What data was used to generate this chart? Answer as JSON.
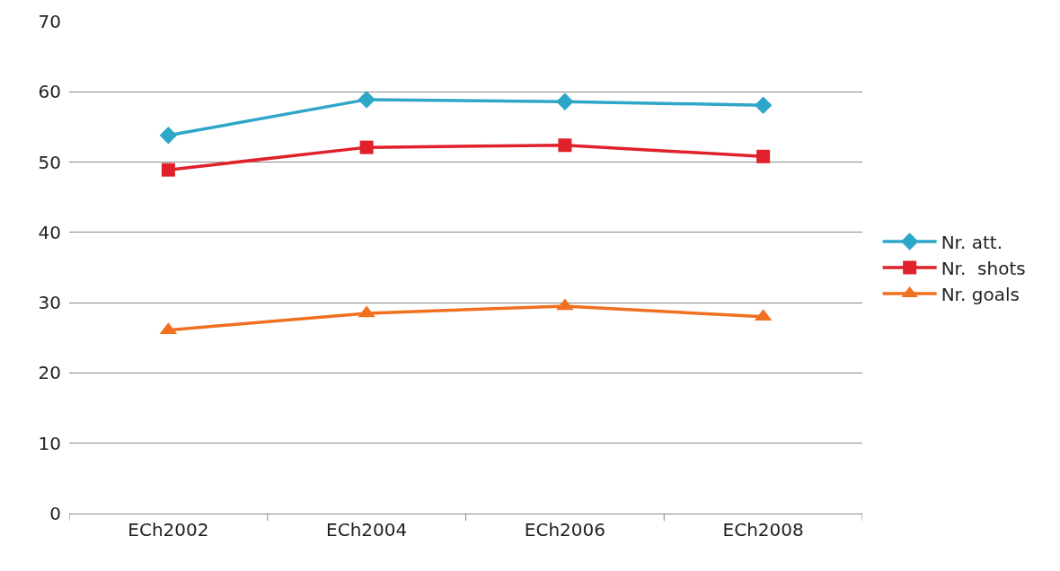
{
  "chart_data": {
    "type": "line",
    "categories": [
      "ECh2002",
      "ECh2004",
      "ECh2006",
      "ECh2008"
    ],
    "series": [
      {
        "name": "Nr. att.",
        "color": "#2ea6c8",
        "marker": "diamond",
        "values": [
          53.8,
          58.9,
          58.6,
          58.1
        ]
      },
      {
        "name": "Nr.  shots",
        "color": "#e0202a",
        "marker": "square",
        "values": [
          48.9,
          52.1,
          52.4,
          50.8
        ]
      },
      {
        "name": "Nr. goals",
        "color": "#f07020",
        "marker": "triangle",
        "values": [
          26.1,
          28.5,
          29.5,
          28.0
        ]
      }
    ],
    "ylim": [
      0,
      70
    ],
    "yticks": [
      0,
      10,
      20,
      30,
      40,
      50,
      60,
      70
    ],
    "grid": "y",
    "legend": "right",
    "line_style": "solid"
  }
}
